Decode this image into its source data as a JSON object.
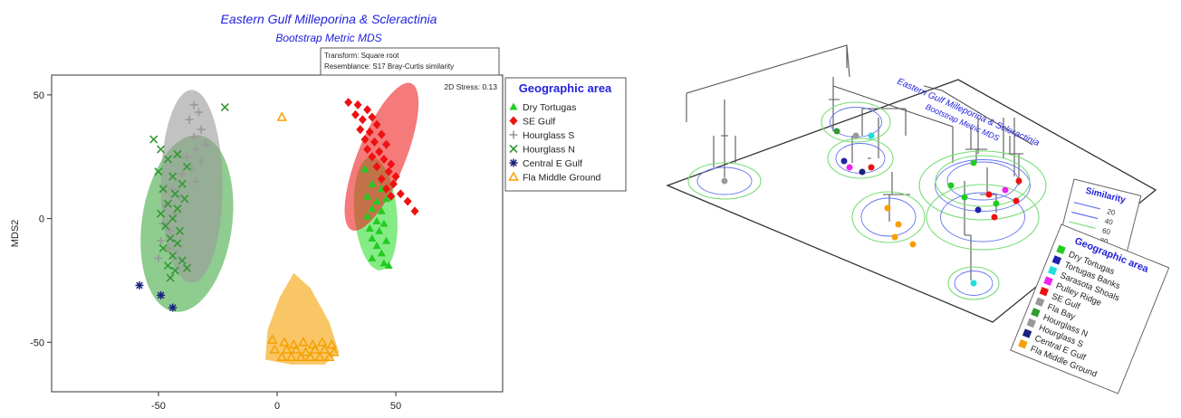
{
  "chart_data": [
    {
      "type": "scatter",
      "title": "Eastern Gulf Milleporina & Scleractinia",
      "subtitle": "Bootstrap Metric MDS",
      "xlabel": "",
      "ylabel": "MDS2",
      "xlim": [
        -95,
        95
      ],
      "ylim": [
        -70,
        58
      ],
      "xticks": [
        -50,
        0,
        50
      ],
      "yticks": [
        -50,
        0,
        50
      ],
      "grid": false,
      "legend_position": "right",
      "legend_title": "Geographic area",
      "info_lines": [
        "Transform: Square root",
        "Resemblance: S17 Bray-Curtis similarity"
      ],
      "stress_text": "2D Stress: 0.13",
      "series": [
        {
          "name": "Dry Tortugas",
          "marker": "triangle",
          "color": "#22cc22",
          "ellipse_fill": "#33dd33",
          "points": [
            [
              37,
              20
            ],
            [
              40,
              14
            ],
            [
              44,
              12
            ],
            [
              38,
              9
            ],
            [
              42,
              7
            ],
            [
              46,
              8
            ],
            [
              40,
              4
            ],
            [
              44,
              3
            ],
            [
              38,
              1
            ],
            [
              42,
              -1
            ],
            [
              45,
              -2
            ],
            [
              39,
              -4
            ],
            [
              43,
              -5
            ],
            [
              40,
              -8
            ],
            [
              46,
              -9
            ],
            [
              42,
              -11
            ],
            [
              44,
              -14
            ],
            [
              40,
              -16
            ],
            [
              45,
              -18
            ],
            [
              47,
              -19
            ]
          ]
        },
        {
          "name": "SE Gulf",
          "marker": "diamond",
          "color": "#ee1111",
          "ellipse_fill": "#ee2222",
          "points": [
            [
              30,
              47
            ],
            [
              34,
              46
            ],
            [
              38,
              44
            ],
            [
              33,
              42
            ],
            [
              40,
              41
            ],
            [
              36,
              40
            ],
            [
              42,
              38
            ],
            [
              35,
              36
            ],
            [
              39,
              35
            ],
            [
              44,
              34
            ],
            [
              37,
              32
            ],
            [
              41,
              31
            ],
            [
              46,
              30
            ],
            [
              38,
              28
            ],
            [
              43,
              27
            ],
            [
              40,
              25
            ],
            [
              45,
              24
            ],
            [
              48,
              22
            ],
            [
              42,
              21
            ],
            [
              47,
              19
            ],
            [
              50,
              17
            ],
            [
              44,
              16
            ],
            [
              49,
              14
            ],
            [
              46,
              12
            ],
            [
              52,
              10
            ],
            [
              48,
              9
            ],
            [
              55,
              7
            ],
            [
              58,
              3
            ]
          ]
        },
        {
          "name": "Hourglass S",
          "marker": "plus",
          "color": "#999999",
          "ellipse_fill": "#999999",
          "points": [
            [
              -35,
              46
            ],
            [
              -33,
              43
            ],
            [
              -37,
              40
            ],
            [
              -32,
              36
            ],
            [
              -35,
              33
            ],
            [
              -30,
              30
            ],
            [
              -34,
              28
            ],
            [
              -38,
              25
            ],
            [
              -32,
              23
            ],
            [
              -36,
              20
            ],
            [
              -40,
              18
            ],
            [
              -34,
              15
            ],
            [
              -44,
              12
            ],
            [
              -41,
              9
            ],
            [
              -47,
              5
            ],
            [
              -43,
              2
            ],
            [
              -48,
              -2
            ],
            [
              -45,
              -5
            ],
            [
              -49,
              -9
            ],
            [
              -46,
              -12
            ],
            [
              -50,
              -16
            ]
          ]
        },
        {
          "name": "Hourglass N",
          "marker": "x",
          "color": "#339933",
          "ellipse_fill": "#44aa44",
          "points": [
            [
              -22,
              45
            ],
            [
              -52,
              32
            ],
            [
              -49,
              28
            ],
            [
              -42,
              26
            ],
            [
              -46,
              24
            ],
            [
              -38,
              21
            ],
            [
              -50,
              19
            ],
            [
              -44,
              17
            ],
            [
              -40,
              14
            ],
            [
              -48,
              12
            ],
            [
              -43,
              10
            ],
            [
              -39,
              8
            ],
            [
              -46,
              6
            ],
            [
              -42,
              4
            ],
            [
              -49,
              2
            ],
            [
              -44,
              0
            ],
            [
              -47,
              -3
            ],
            [
              -41,
              -5
            ],
            [
              -45,
              -8
            ],
            [
              -42,
              -10
            ],
            [
              -48,
              -12
            ],
            [
              -44,
              -15
            ],
            [
              -40,
              -17
            ],
            [
              -46,
              -19
            ],
            [
              -43,
              -21
            ],
            [
              -38,
              -20
            ],
            [
              -45,
              -24
            ]
          ]
        },
        {
          "name": "Central E Gulf",
          "marker": "star",
          "color": "#1a237e",
          "ellipse_fill": "none",
          "points": [
            [
              -58,
              -27
            ],
            [
              -49,
              -31
            ],
            [
              -44,
              -36
            ]
          ]
        },
        {
          "name": "Fla Middle Ground",
          "marker": "triangle-open",
          "color": "#f5a000",
          "ellipse_fill": "#f5a000",
          "points": [
            [
              2,
              41
            ],
            [
              -2,
              -49
            ],
            [
              3,
              -50
            ],
            [
              7,
              -51
            ],
            [
              11,
              -50
            ],
            [
              15,
              -51
            ],
            [
              19,
              -50
            ],
            [
              23,
              -51
            ],
            [
              -1,
              -53
            ],
            [
              4,
              -53
            ],
            [
              8,
              -53
            ],
            [
              12,
              -54
            ],
            [
              16,
              -53
            ],
            [
              20,
              -53
            ],
            [
              24,
              -54
            ],
            [
              2,
              -56
            ],
            [
              6,
              -56
            ],
            [
              10,
              -56
            ],
            [
              14,
              -56
            ],
            [
              18,
              -56
            ],
            [
              22,
              -56
            ]
          ]
        }
      ]
    },
    {
      "type": "other",
      "title": "Eastern Gulf Milleporina & Scleractinia",
      "subtitle": "Bootstrap Metric MDS",
      "legend_title": "Geographic area",
      "legend_items": [
        {
          "name": "Dry Tortugas",
          "color": "#22cc22"
        },
        {
          "name": "Tortugas Banks",
          "color": "#2222aa"
        },
        {
          "name": "Sarasota Shoals",
          "color": "#22dddd"
        },
        {
          "name": "Pulley Ridge",
          "color": "#ee22ee"
        },
        {
          "name": "SE Gulf",
          "color": "#ee1111"
        },
        {
          "name": "Fla Bay",
          "color": "#999999"
        },
        {
          "name": "Hourglass N",
          "color": "#339933"
        },
        {
          "name": "Hourglass S",
          "color": "#999999"
        },
        {
          "name": "Central E Gulf",
          "color": "#1a237e"
        },
        {
          "name": "Fla Middle Ground",
          "color": "#f5a000"
        }
      ],
      "similarity_title": "Similarity",
      "similarity_levels": [
        "20",
        "40",
        "60",
        "80"
      ]
    }
  ]
}
